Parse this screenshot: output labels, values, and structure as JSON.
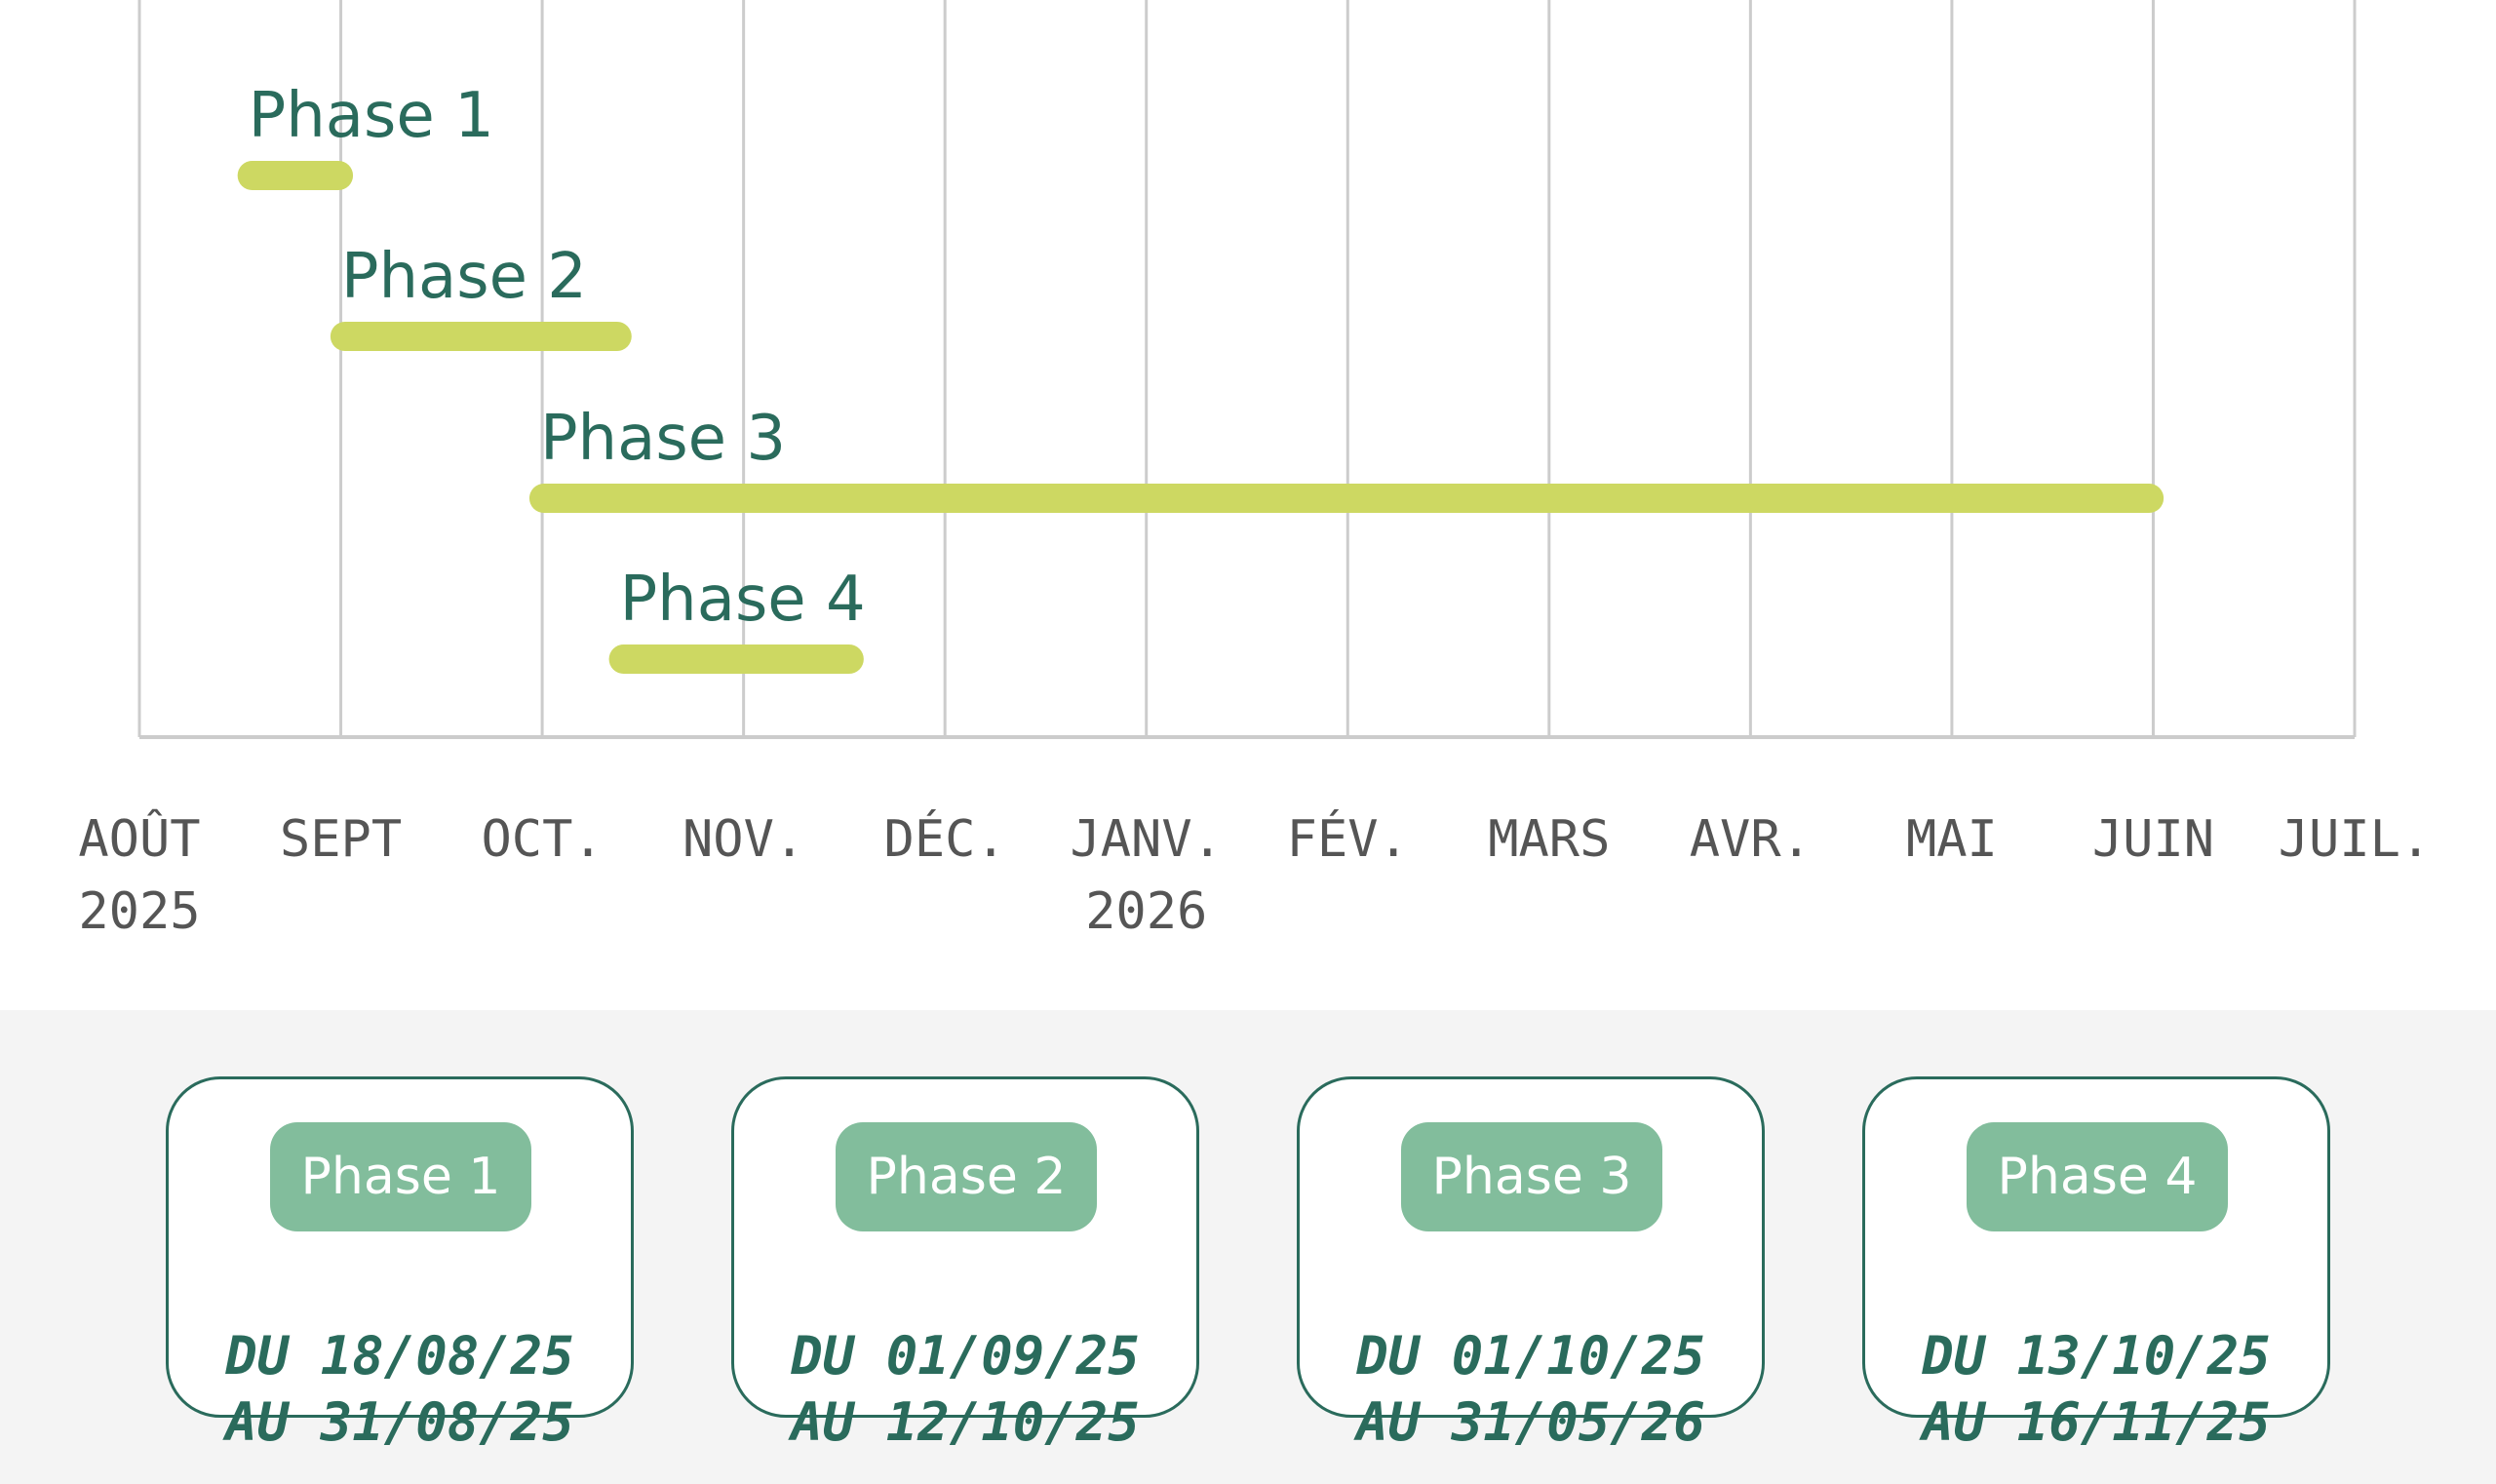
{
  "chart_data": {
    "type": "gantt",
    "x_axis": {
      "ticks": [
        {
          "month": "AOÛT",
          "year": "2025"
        },
        {
          "month": "SEPT",
          "year": ""
        },
        {
          "month": "OCT.",
          "year": ""
        },
        {
          "month": "NOV.",
          "year": ""
        },
        {
          "month": "DÉC.",
          "year": ""
        },
        {
          "month": "JANV.",
          "year": "2026"
        },
        {
          "month": "FÉV.",
          "year": ""
        },
        {
          "month": "MARS",
          "year": ""
        },
        {
          "month": "AVR.",
          "year": ""
        },
        {
          "month": "MAI",
          "year": ""
        },
        {
          "month": "JUIN",
          "year": ""
        },
        {
          "month": "JUIL.",
          "year": ""
        }
      ],
      "range": [
        "2025-08-01",
        "2026-07-01"
      ]
    },
    "tasks": [
      {
        "name": "Phase 1",
        "start": "2025-08-18",
        "end": "2025-08-31"
      },
      {
        "name": "Phase 2",
        "start": "2025-09-01",
        "end": "2025-10-12"
      },
      {
        "name": "Phase 3",
        "start": "2025-10-01",
        "end": "2026-05-31"
      },
      {
        "name": "Phase 4",
        "start": "2025-10-13",
        "end": "2025-11-16"
      }
    ],
    "grid": true
  },
  "colors": {
    "bar": "#cdd862",
    "task_label": "#2a6b5c",
    "grid": "#cccccc",
    "card_border": "#2a6b5c",
    "pill": "#82bd9c"
  },
  "cards": [
    {
      "label": "Phase 1",
      "from": "DU 18/08/25",
      "to": "AU 31/08/25"
    },
    {
      "label": "Phase 2",
      "from": "DU 01/09/25",
      "to": "AU 12/10/25"
    },
    {
      "label": "Phase 3",
      "from": "DU 01/10/25",
      "to": "AU 31/05/26"
    },
    {
      "label": "Phase 4",
      "from": "DU 13/10/25",
      "to": "AU 16/11/25"
    }
  ]
}
